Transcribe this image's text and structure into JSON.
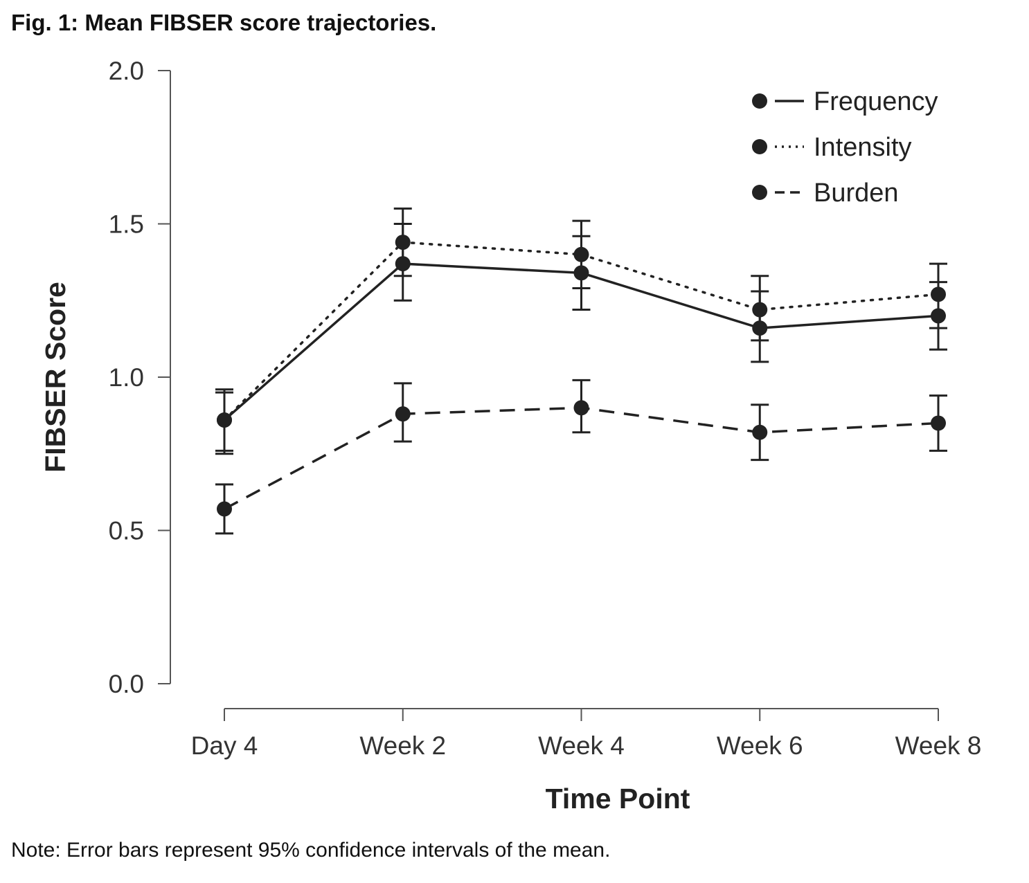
{
  "figure": {
    "title": "Fig. 1: Mean FIBSER score trajectories.",
    "note": "Note: Error bars represent 95% confidence intervals of the mean."
  },
  "chart_data": {
    "type": "line",
    "title": "Mean FIBSER score trajectories",
    "xlabel": "Time Point",
    "ylabel": "FIBSER Score",
    "ylim": [
      0.0,
      2.0
    ],
    "yticks": [
      "0.0",
      "0.5",
      "1.0",
      "1.5",
      "2.0"
    ],
    "categories": [
      "Day 4",
      "Week 2",
      "Week 4",
      "Week 6",
      "Week 8"
    ],
    "legend_position": "top-right",
    "grid": false,
    "series": [
      {
        "name": "Frequency",
        "line_style": "solid",
        "values": [
          0.86,
          1.37,
          1.34,
          1.16,
          1.2
        ],
        "ci_lower": [
          0.75,
          1.25,
          1.22,
          1.05,
          1.09
        ],
        "ci_upper": [
          0.96,
          1.5,
          1.46,
          1.28,
          1.31
        ]
      },
      {
        "name": "Intensity",
        "line_style": "dotted",
        "values": [
          0.86,
          1.44,
          1.4,
          1.22,
          1.27
        ],
        "ci_lower": [
          0.76,
          1.33,
          1.29,
          1.12,
          1.16
        ],
        "ci_upper": [
          0.95,
          1.55,
          1.51,
          1.33,
          1.37
        ]
      },
      {
        "name": "Burden",
        "line_style": "dashed",
        "values": [
          0.57,
          0.88,
          0.9,
          0.82,
          0.85
        ],
        "ci_lower": [
          0.49,
          0.79,
          0.82,
          0.73,
          0.76
        ],
        "ci_upper": [
          0.65,
          0.98,
          0.99,
          0.91,
          0.94
        ]
      }
    ],
    "colors": {
      "line": "#222222",
      "axis": "#555555",
      "text": "#333333"
    }
  }
}
